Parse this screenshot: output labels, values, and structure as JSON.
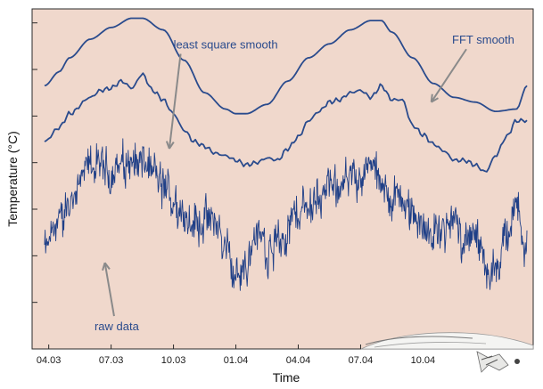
{
  "chart_data": {
    "type": "line",
    "title": "",
    "xlabel": "Time",
    "ylabel": "Temperature (°C)",
    "x_tick_labels": [
      "04.03",
      "07.03",
      "10.03",
      "01.04",
      "04.04",
      "07.04",
      "10.04"
    ],
    "x_tick_positions": [
      0,
      3,
      6,
      9,
      12,
      15,
      18
    ],
    "xlim": [
      -0.8,
      23.3
    ],
    "ylim": [
      0,
      7.3
    ],
    "y_ticks": [
      1,
      2,
      3,
      4,
      5,
      6,
      7
    ],
    "y_tick_labels_shown": false,
    "grid": false,
    "legend": "none",
    "series": [
      {
        "key": "fft",
        "color": "#2a4b8d",
        "x": [
          -0.2,
          0.5,
          1.0,
          2.0,
          3.0,
          4.0,
          4.5,
          5.5,
          6.5,
          7.5,
          8.5,
          9.0,
          9.5,
          10.5,
          11.5,
          12.5,
          13.5,
          14.5,
          15.5,
          16.0,
          16.5,
          17.5,
          18.5,
          19.5,
          20.5,
          21.5,
          22.5,
          23.0
        ],
        "y": [
          5.65,
          5.95,
          6.25,
          6.65,
          6.9,
          7.1,
          7.1,
          6.85,
          6.2,
          5.5,
          5.15,
          5.05,
          5.05,
          5.25,
          5.75,
          6.25,
          6.55,
          6.85,
          7.05,
          7.05,
          6.8,
          6.25,
          5.7,
          5.4,
          5.3,
          5.1,
          5.15,
          5.65
        ]
      },
      {
        "key": "lss",
        "color": "#2a4b8d",
        "x": [
          -0.2,
          0.5,
          1.0,
          2.0,
          2.5,
          3.0,
          3.5,
          4.0,
          4.5,
          5.0,
          5.5,
          6.0,
          6.5,
          7.0,
          7.5,
          8.0,
          8.5,
          9.0,
          9.5,
          10.0,
          10.5,
          11.0,
          11.5,
          12.0,
          12.5,
          13.0,
          13.5,
          14.0,
          14.5,
          15.0,
          15.5,
          16.0,
          16.5,
          17.0,
          17.5,
          18.0,
          18.5,
          19.0,
          19.5,
          20.0,
          20.5,
          21.0,
          21.5,
          22.0,
          22.5,
          23.0
        ],
        "y": [
          4.45,
          4.75,
          5.05,
          5.4,
          5.55,
          5.6,
          5.75,
          5.6,
          5.9,
          5.55,
          5.35,
          5.05,
          4.7,
          4.45,
          4.35,
          4.2,
          4.15,
          4.05,
          3.95,
          4.0,
          4.1,
          4.05,
          4.3,
          4.55,
          4.9,
          5.1,
          5.3,
          5.35,
          5.5,
          5.55,
          5.4,
          5.65,
          5.35,
          5.35,
          4.8,
          4.6,
          4.4,
          4.25,
          4.05,
          4.05,
          3.95,
          3.8,
          4.15,
          4.55,
          4.9,
          4.9
        ]
      },
      {
        "key": "raw",
        "color": "#1f3f87",
        "x_start": -0.2,
        "x_end": 23.0,
        "envelope_x": [
          -0.2,
          0.5,
          1.0,
          1.5,
          2.0,
          2.5,
          3.0,
          3.5,
          4.0,
          4.5,
          5.0,
          5.5,
          6.0,
          6.5,
          7.0,
          7.5,
          8.0,
          8.5,
          9.0,
          9.5,
          10.0,
          10.5,
          11.0,
          11.5,
          12.0,
          12.5,
          13.0,
          13.5,
          14.0,
          14.5,
          15.0,
          15.5,
          16.0,
          16.5,
          17.0,
          17.5,
          18.0,
          18.5,
          19.0,
          19.5,
          20.0,
          20.5,
          21.0,
          21.5,
          22.0,
          22.5,
          23.0
        ],
        "envelope_mean": [
          2.1,
          2.75,
          3.1,
          3.55,
          3.95,
          3.85,
          3.75,
          3.95,
          4.05,
          4.0,
          3.8,
          3.45,
          3.2,
          2.9,
          2.7,
          2.8,
          2.7,
          2.2,
          1.55,
          1.8,
          2.5,
          2.2,
          2.25,
          2.6,
          2.95,
          3.05,
          3.3,
          3.45,
          3.55,
          3.65,
          3.75,
          3.9,
          3.5,
          3.2,
          3.25,
          2.9,
          2.55,
          2.45,
          2.6,
          2.7,
          2.4,
          2.35,
          1.75,
          1.6,
          2.35,
          3.05,
          2.1
        ],
        "amplitude": 0.45,
        "points": 900
      }
    ],
    "annotations": [
      {
        "key": "lss",
        "text": "least square smooth",
        "anchor_x": 6.0,
        "anchor_y": 6.45,
        "arrow_to_x": 5.8,
        "arrow_to_y": 4.3,
        "color": "#2a4b8d"
      },
      {
        "key": "fft",
        "text": "FFT smooth",
        "anchor_x": 19.4,
        "anchor_y": 6.55,
        "arrow_to_x": 18.4,
        "arrow_to_y": 5.3,
        "color": "#2a4b8d"
      },
      {
        "key": "raw",
        "text": "raw data",
        "anchor_x": 2.2,
        "anchor_y": 0.4,
        "arrow_to_x": 2.7,
        "arrow_to_y": 1.85,
        "color": "#2a4b8d"
      }
    ]
  },
  "colors": {
    "plot_background": "#f0d8cc",
    "frame": "#2a2a2a",
    "arrow": "#8a8a8a"
  }
}
